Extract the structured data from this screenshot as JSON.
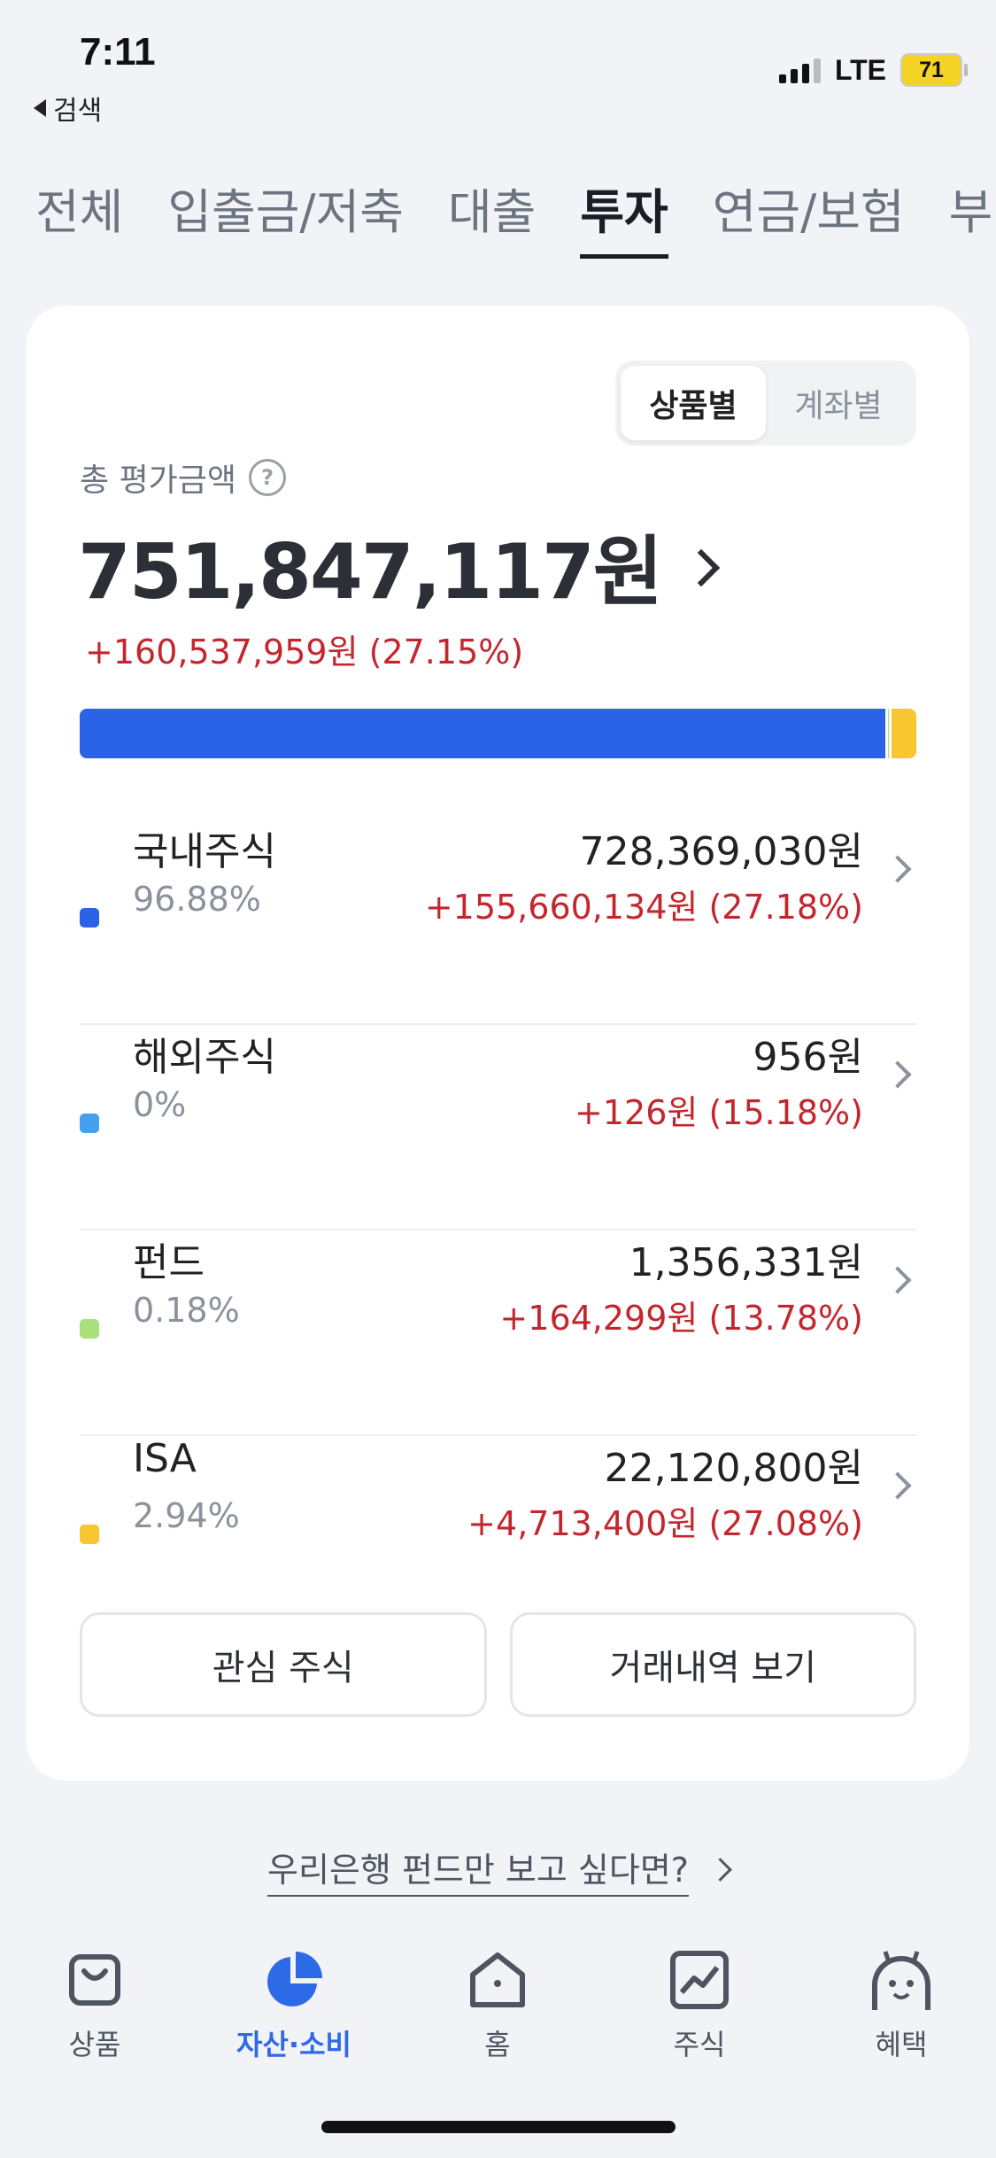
{
  "status_bar": {
    "time": "7:11",
    "back_label": "검색",
    "network": "LTE",
    "battery": "71"
  },
  "category_tabs": [
    {
      "label": "전체",
      "active": false
    },
    {
      "label": "입출금/저축",
      "active": false
    },
    {
      "label": "대출",
      "active": false
    },
    {
      "label": "투자",
      "active": true
    },
    {
      "label": "연금/보험",
      "active": false
    },
    {
      "label": "부",
      "active": false
    }
  ],
  "view_toggle": {
    "by_product": "상품별",
    "by_account": "계좌별",
    "selected": "상품별"
  },
  "summary": {
    "label": "총 평가금액",
    "help_icon": "question-circle-icon",
    "amount": "751,847,117원",
    "change": "+160,537,959원 (27.15%)"
  },
  "allocation_bar": {
    "segments": [
      {
        "name": "국내주식",
        "percent": 96.88,
        "color": "#2a63e6"
      },
      {
        "name": "해외주식",
        "percent": 0,
        "color": "#45a0f0"
      },
      {
        "name": "펀드",
        "percent": 0.18,
        "color": "#a9e07a"
      },
      {
        "name": "ISA",
        "percent": 2.94,
        "color": "#f7c631"
      }
    ]
  },
  "holdings": [
    {
      "name": "국내주식",
      "percent": "96.88%",
      "value": "728,369,030원",
      "change": "+155,660,134원 (27.18%)",
      "color": "#2a63e6"
    },
    {
      "name": "해외주식",
      "percent": "0%",
      "value": "956원",
      "change": "+126원 (15.18%)",
      "color": "#45a0f0"
    },
    {
      "name": "펀드",
      "percent": "0.18%",
      "value": "1,356,331원",
      "change": "+164,299원 (13.78%)",
      "color": "#a9e07a"
    },
    {
      "name": "ISA",
      "percent": "2.94%",
      "value": "22,120,800원",
      "change": "+4,713,400원 (27.08%)",
      "color": "#f7c631"
    }
  ],
  "actions": {
    "watchlist": "관심 주식",
    "history": "거래내역 보기"
  },
  "promo": {
    "text": "우리은행 펀드만 보고 싶다면?"
  },
  "bottom_nav": [
    {
      "label": "상품",
      "icon": "bag-icon",
      "active": false
    },
    {
      "label": "자산·소비",
      "icon": "pie-chart-icon",
      "active": true
    },
    {
      "label": "홈",
      "icon": "home-icon",
      "active": false
    },
    {
      "label": "주식",
      "icon": "stock-chart-icon",
      "active": false
    },
    {
      "label": "혜택",
      "icon": "smile-character-icon",
      "active": false
    }
  ],
  "colors": {
    "accent": "#2d6ae8",
    "positive_change": "#c4262e",
    "background": "#f2f3f6"
  }
}
